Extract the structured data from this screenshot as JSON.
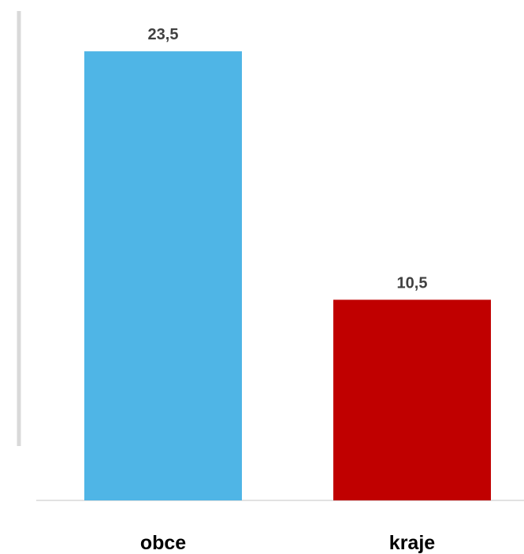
{
  "chart_data": {
    "type": "bar",
    "categories": [
      "obce",
      "kraje"
    ],
    "values": [
      23.5,
      10.5
    ],
    "value_labels": [
      "23,5",
      "10,5"
    ],
    "colors": [
      "#4FB5E6",
      "#C00000"
    ],
    "title": "",
    "xlabel": "",
    "ylabel": "",
    "ylim": [
      0,
      25
    ],
    "grid": false,
    "legend": "none"
  }
}
